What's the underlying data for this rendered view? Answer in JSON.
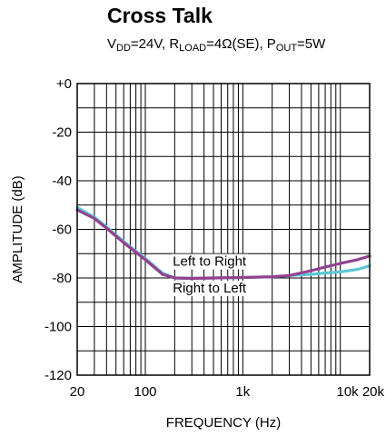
{
  "chart_data": {
    "type": "line",
    "title": "Cross Talk",
    "subtitle": {
      "vdd": "V",
      "vdd_sub": "DD",
      "vdd_val": "=24V, ",
      "rload": "R",
      "rload_sub": "LOAD",
      "rload_val": "=4Ω(SE), ",
      "pout": "P",
      "pout_sub": "OUT",
      "pout_val": "=5W"
    },
    "xlabel": "FREQUENCY (Hz)",
    "ylabel": "AMPLITUDE (dB)",
    "xscale": "log",
    "xlim": [
      20,
      20000
    ],
    "ylim": [
      -120,
      0
    ],
    "grid": true,
    "x_ticks": [
      {
        "value": 20,
        "label": "20"
      },
      {
        "value": 100,
        "label": "100"
      },
      {
        "value": 1000,
        "label": "1k"
      },
      {
        "value": 10000,
        "label": "10k"
      },
      {
        "value": 20000,
        "label": "20k"
      }
    ],
    "y_ticks": [
      {
        "value": 0,
        "label": "+0"
      },
      {
        "value": -20,
        "label": "-20"
      },
      {
        "value": -40,
        "label": "-40"
      },
      {
        "value": -60,
        "label": "-60"
      },
      {
        "value": -80,
        "label": "-80"
      },
      {
        "value": -100,
        "label": "-100"
      },
      {
        "value": -120,
        "label": "-120"
      }
    ],
    "series": [
      {
        "name": "Left to Right",
        "color": "#5bc8d2",
        "points": [
          [
            20,
            -51
          ],
          [
            30,
            -55
          ],
          [
            40,
            -59
          ],
          [
            60,
            -65
          ],
          [
            100,
            -72
          ],
          [
            150,
            -78
          ],
          [
            200,
            -80
          ],
          [
            300,
            -80.2
          ],
          [
            500,
            -80
          ],
          [
            1000,
            -79.8
          ],
          [
            2000,
            -79.5
          ],
          [
            3000,
            -79
          ],
          [
            5000,
            -78.5
          ],
          [
            7000,
            -78
          ],
          [
            10000,
            -77.5
          ],
          [
            15000,
            -76.5
          ],
          [
            20000,
            -75
          ]
        ]
      },
      {
        "name": "Right to Left",
        "color": "#93418f",
        "points": [
          [
            20,
            -52
          ],
          [
            30,
            -55.5
          ],
          [
            40,
            -59.5
          ],
          [
            60,
            -65.5
          ],
          [
            100,
            -72.5
          ],
          [
            150,
            -78.5
          ],
          [
            200,
            -80
          ],
          [
            300,
            -80.2
          ],
          [
            500,
            -80
          ],
          [
            1000,
            -79.8
          ],
          [
            2000,
            -79.5
          ],
          [
            3000,
            -79
          ],
          [
            5000,
            -77
          ],
          [
            7000,
            -75.5
          ],
          [
            10000,
            -74
          ],
          [
            15000,
            -72.5
          ],
          [
            20000,
            -71
          ]
        ]
      }
    ],
    "annotations": [
      {
        "text": "Left to Right",
        "x": 300,
        "y": -75
      },
      {
        "text": "Right to Left",
        "x": 300,
        "y": -86
      }
    ]
  }
}
